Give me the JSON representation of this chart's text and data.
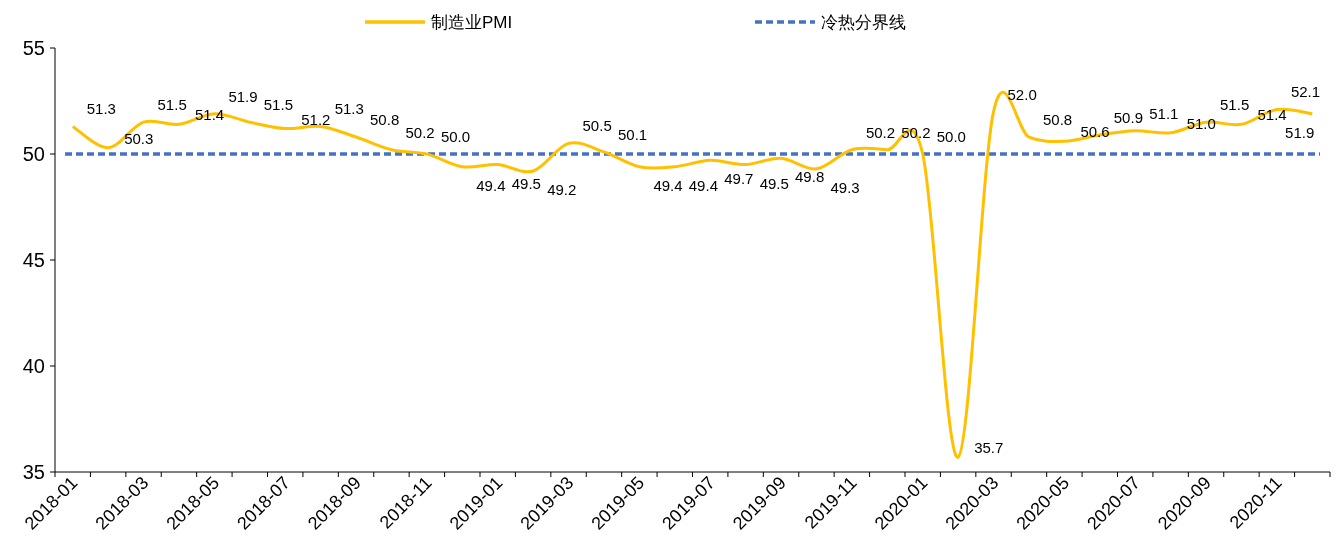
{
  "chart_data": {
    "type": "line",
    "categories": [
      "2018-01",
      null,
      "2018-03",
      null,
      "2018-05",
      null,
      "2018-07",
      null,
      "2018-09",
      null,
      "2018-11",
      null,
      "2019-01",
      null,
      "2019-03",
      null,
      "2019-05",
      null,
      "2019-07",
      null,
      "2019-09",
      null,
      "2019-11",
      null,
      "2020-01",
      null,
      "2020-03",
      null,
      "2020-05",
      null,
      "2020-07",
      null,
      "2020-09",
      null,
      "2020-11",
      null
    ],
    "series": [
      {
        "name": "制造业PMI",
        "color": "#ffc000",
        "values": [
          51.3,
          50.3,
          51.5,
          51.4,
          51.9,
          51.5,
          51.2,
          51.3,
          50.8,
          50.2,
          50.0,
          49.4,
          49.5,
          49.2,
          50.5,
          50.1,
          49.4,
          49.4,
          49.7,
          49.5,
          49.8,
          49.3,
          50.2,
          50.2,
          50.0,
          35.7,
          52.0,
          50.8,
          50.6,
          50.9,
          51.1,
          51.0,
          51.5,
          51.4,
          52.1,
          51.9
        ],
        "value_labels": [
          "51.3",
          "50.3",
          "51.5",
          "51.4",
          "51.9",
          "51.5",
          "51.2",
          "51.3",
          "50.8",
          "50.2",
          "50.0",
          "49.4",
          "49.5",
          "49.2",
          "50.5",
          "50.1",
          "49.4",
          "49.4",
          "49.7",
          "49.5",
          "49.8",
          "49.3",
          "50.2",
          "50.2",
          "50.0",
          "35.7",
          "52.0",
          "50.8",
          "50.6",
          "50.9",
          "51.1",
          "51.0",
          "51.5",
          "51.4",
          "52.1",
          "51.9"
        ]
      }
    ],
    "ylim": [
      35,
      55
    ],
    "yticks": [
      35,
      40,
      45,
      50,
      55
    ],
    "ref_lines": [
      {
        "axis": "y",
        "value": 50,
        "label": "冷热分界线",
        "color": "#4472c4",
        "line_style": "dashed"
      }
    ],
    "legend": "top",
    "grid": false,
    "marker": "none",
    "line_style": "solid"
  }
}
